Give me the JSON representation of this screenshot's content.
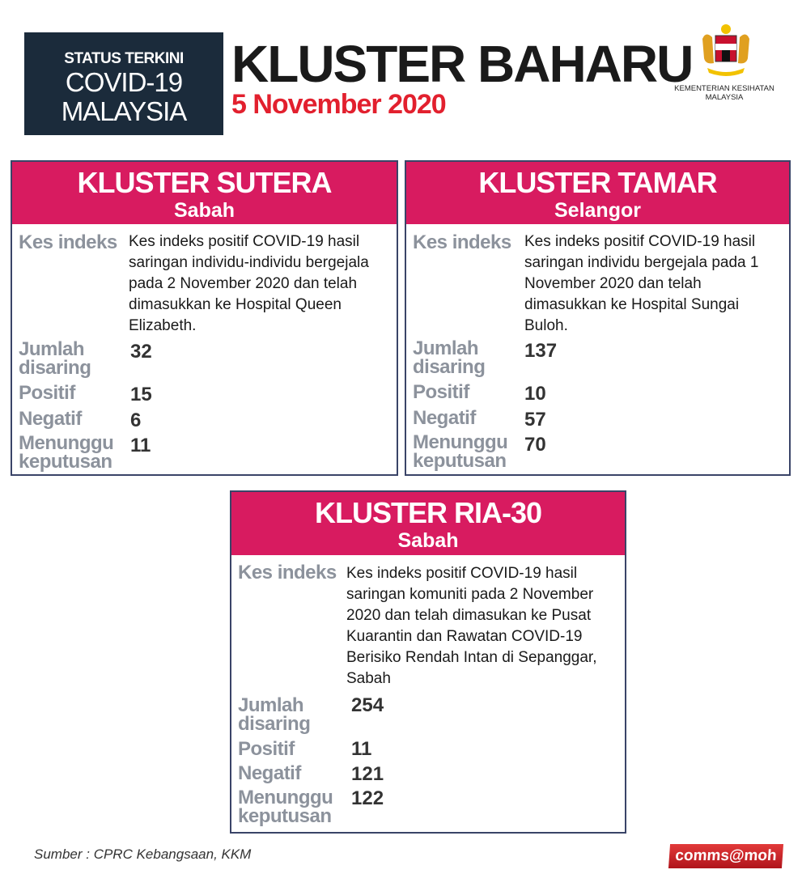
{
  "header": {
    "status_line1": "STATUS TERKINI",
    "status_line2": "COVID-19",
    "status_line3": "MALAYSIA",
    "title": "KLUSTER BAHARU",
    "date": "5 November 2020",
    "ministry": "KEMENTERIAN KESIHATAN MALAYSIA"
  },
  "labels": {
    "kes_indeks": "Kes indeks",
    "jumlah_disaring": "Jumlah disaring",
    "positif": "Positif",
    "negatif": "Negatif",
    "menunggu_keputusan": "Menunggu keputusan"
  },
  "clusters": [
    {
      "name": "KLUSTER SUTERA",
      "state": "Sabah",
      "description": "Kes indeks positif COVID-19 hasil saringan individu-individu bergejala pada 2 November 2020 dan telah dimasukkan ke Hospital Queen Elizabeth.",
      "jumlah_disaring": "32",
      "positif": "15",
      "negatif": "6",
      "menunggu_keputusan": "11"
    },
    {
      "name": "KLUSTER TAMAR",
      "state": "Selangor",
      "description": "Kes indeks positif COVID-19 hasil saringan  individu bergejala pada 1 November 2020 dan telah dimasukkan ke Hospital Sungai Buloh.",
      "jumlah_disaring": "137",
      "positif": "10",
      "negatif": "57",
      "menunggu_keputusan": "70"
    },
    {
      "name": "KLUSTER RIA-30",
      "state": "Sabah",
      "description": "Kes indeks positif COVID-19 hasil saringan komuniti pada 2 November 2020 dan telah dimasukan ke Pusat Kuarantin dan Rawatan COVID-19 Berisiko Rendah Intan di Sepanggar, Sabah",
      "jumlah_disaring": "254",
      "positif": "11",
      "negatif": "121",
      "menunggu_keputusan": "122"
    }
  ],
  "footer": {
    "source": "Sumber : CPRC Kebangsaan, KKM",
    "badge": "comms@moh"
  },
  "colors": {
    "accent": "#d81b60",
    "navy": "#1b2b3b",
    "date_red": "#e2202e",
    "label_gray": "#8c929c"
  }
}
